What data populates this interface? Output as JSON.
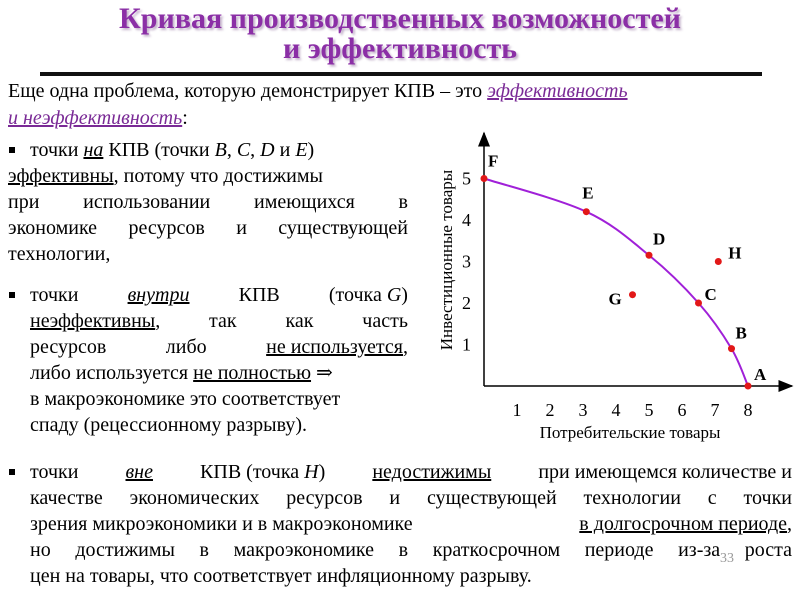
{
  "title": {
    "line1": "Кривая производственных возможностей",
    "line2": "и эффективность"
  },
  "intro": {
    "text": "Еще одна проблема, которую демонстрирует КПВ – это",
    "highlight_a": "эффективность",
    "highlight_b": "и неэффективность",
    "colon": ":"
  },
  "bullet1": {
    "l1_a": "точки",
    "l1_b": "на",
    "l1_c": "КПВ (точки",
    "l1_B": "B",
    "l1_comma1": ",",
    "l1_C": "C",
    "l1_comma2": ",",
    "l1_D": "D",
    "l1_and": "и",
    "l1_E": "E",
    "l1_close": ")",
    "l2_a": "эффективны",
    "l2_b": ", потому что достижимы",
    "l3": "при использовании имеющихся в",
    "l4": "экономике ресурсов и существующей",
    "l5": "технологии,"
  },
  "bullet2": {
    "l1_a": "точки",
    "l1_b": "внутри",
    "l1_c": "КПВ",
    "l1_d": "(точка",
    "l1_G": "G",
    "l1_close": ")",
    "l2_a": "неэффективны",
    "l2_b": ",",
    "l2_c": "так",
    "l2_d": "как",
    "l2_e": "часть",
    "l3_a": "ресурсов",
    "l3_b": "либо",
    "l3_c": "не используется",
    "l3_d": ",",
    "l4_a": "либо используется",
    "l4_b": "не полностью",
    "l4_arrow": "⇒",
    "l5": "в макроэкономике это соответствует",
    "l6": "спаду (рецессионному разрыву)."
  },
  "bullet3": {
    "l1_a": "точки",
    "l1_b": "вне",
    "l1_c": "КПВ (точка",
    "l1_H": "H",
    "l1_d": ")",
    "l1_e": "недостижимы",
    "l1_f": "при имеющемся количестве и",
    "l2": "качестве экономических ресурсов и существующей технологии с точки",
    "l3_a": "зрения микроэкономики и в макроэкономике",
    "l3_b": "в долгосрочном периоде",
    "l3_c": ",",
    "l4": "но достижимы в макроэкономике в краткосрочном периоде из-за роста",
    "l5": "цен на товары, что соответствует инфляционному разрыву."
  },
  "page_number": "33",
  "colors": {
    "title": "#8b2fa6",
    "highlight": "#7a2a96",
    "curve": "#a020d8",
    "point": "#e21818"
  },
  "chart_data": {
    "type": "line",
    "xlabel": "Потребительские товары",
    "ylabel": "Инвестиционные товары",
    "x_ticks": [
      "1",
      "2",
      "3",
      "4",
      "5",
      "6",
      "7",
      "8"
    ],
    "y_ticks": [
      "1",
      "2",
      "3",
      "4",
      "5"
    ],
    "xlim": [
      0,
      8.3
    ],
    "ylim": [
      0,
      6
    ],
    "grid": false,
    "curve_points": [
      {
        "label": "F",
        "x": 0,
        "y": 5
      },
      {
        "label": "E",
        "x": 3.1,
        "y": 4.2
      },
      {
        "label": "D",
        "x": 5.0,
        "y": 3.15
      },
      {
        "label": "C",
        "x": 6.5,
        "y": 2.0
      },
      {
        "label": "B",
        "x": 7.5,
        "y": 0.9
      },
      {
        "label": "A",
        "x": 8,
        "y": 0
      }
    ],
    "other_points": [
      {
        "label": "G",
        "x": 4.5,
        "y": 2.2
      },
      {
        "label": "H",
        "x": 7.1,
        "y": 3.0
      }
    ]
  }
}
